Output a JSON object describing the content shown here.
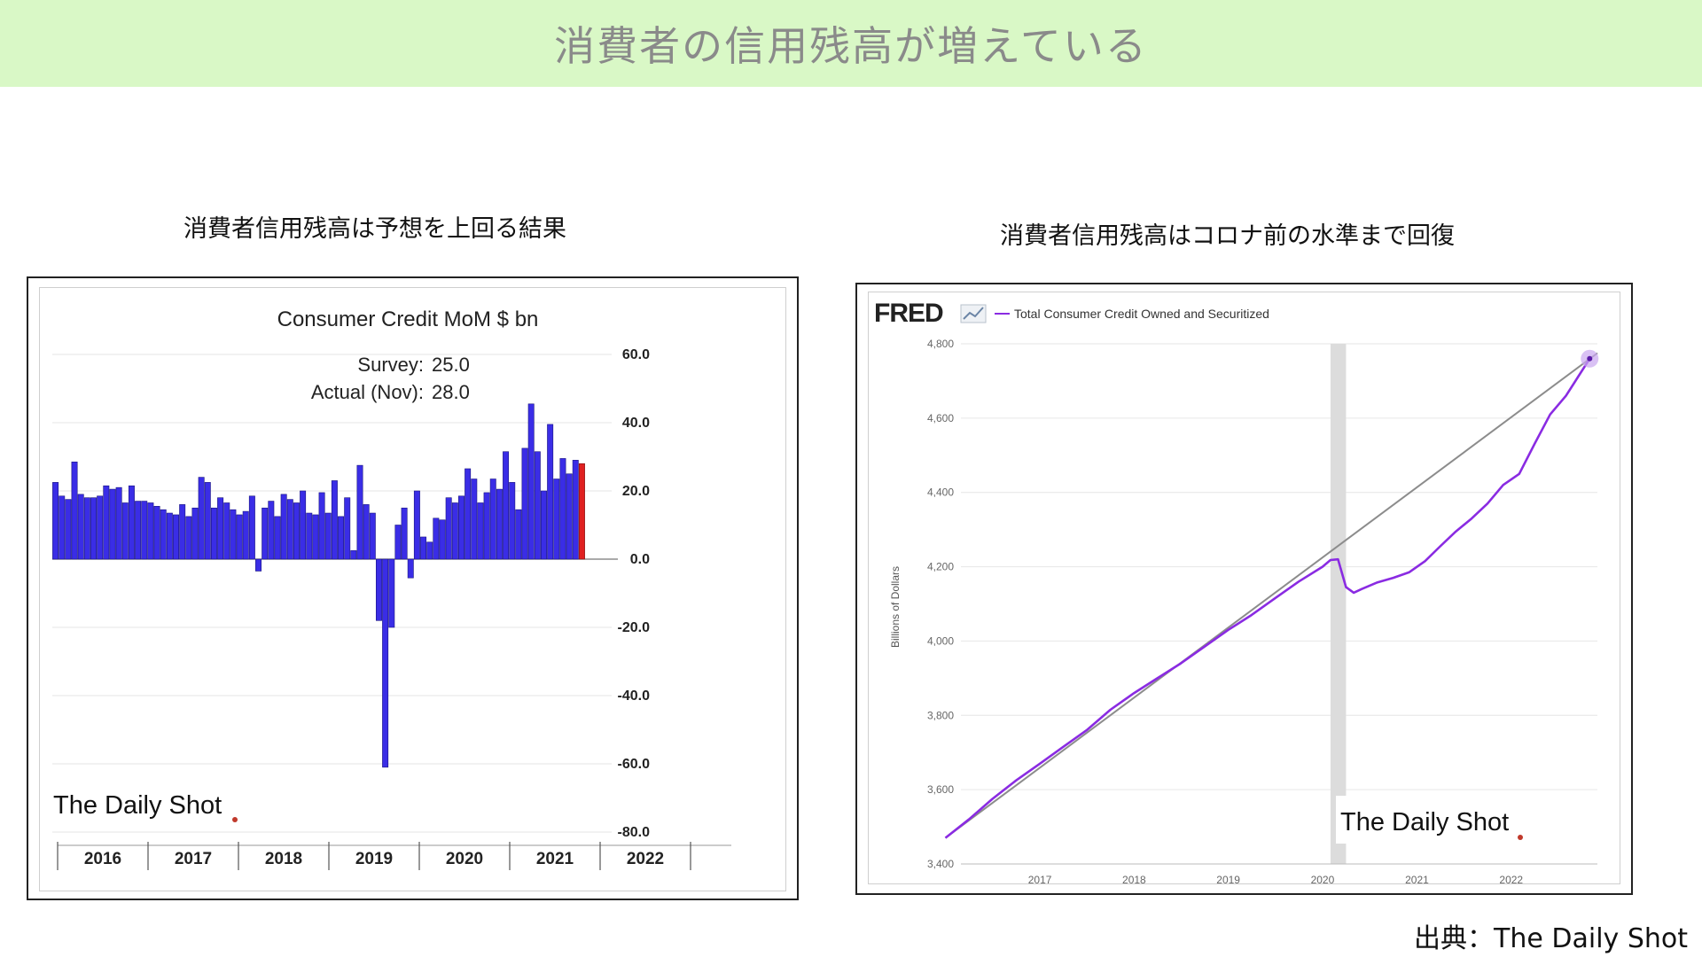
{
  "banner": {
    "title": "消費者の信用残高が増えている"
  },
  "left": {
    "subtitle": "消費者信用残高は予想を上回る結果",
    "watermark": "The Daily Shot",
    "chart_data": {
      "type": "bar",
      "title": "Consumer Credit MoM $ bn",
      "annotation": {
        "survey_label": "Survey:",
        "survey_value": "25.0",
        "actual_label": "Actual (Nov):",
        "actual_value": "28.0"
      },
      "ylim": [
        -80,
        60
      ],
      "yticks": [
        "60.0",
        "40.0",
        "20.0",
        "0.0",
        "-20.0",
        "-40.0",
        "-60.0",
        "-80.0"
      ],
      "x_labels": [
        "2016",
        "2017",
        "2018",
        "2019",
        "2020",
        "2021",
        "2022"
      ],
      "values": [
        22.5,
        18.5,
        17.5,
        28.5,
        19.0,
        18.0,
        18.0,
        18.5,
        21.5,
        20.5,
        21.0,
        16.5,
        21.5,
        17.0,
        17.0,
        16.5,
        15.5,
        14.5,
        13.5,
        13.0,
        16.0,
        12.5,
        15.0,
        24.0,
        22.5,
        15.0,
        18.0,
        16.5,
        14.5,
        13.0,
        14.0,
        18.5,
        -3.5,
        15.0,
        17.0,
        12.5,
        19.0,
        17.5,
        16.5,
        20.0,
        13.5,
        13.0,
        19.5,
        13.5,
        23.0,
        12.5,
        18.0,
        2.5,
        27.5,
        16.0,
        13.5,
        -18.0,
        -61.0,
        -20.0,
        10.0,
        15.0,
        -5.5,
        20.0,
        6.5,
        5.0,
        12.0,
        11.5,
        18.0,
        16.5,
        18.5,
        26.5,
        23.5,
        16.5,
        19.5,
        23.5,
        20.5,
        31.5,
        22.5,
        14.5,
        32.5,
        45.5,
        31.5,
        20.0,
        39.5,
        23.5,
        29.5,
        25.0,
        29.0,
        28.0
      ],
      "bar_color": "#3a2de6",
      "latest_color": "#e02020"
    }
  },
  "right": {
    "subtitle": "消費者信用残高はコロナ前の水準まで回復",
    "logo": "FRED",
    "legend_label": "Total Consumer Credit Owned and Securitized",
    "watermark": "The Daily Shot",
    "chart_data": {
      "type": "line",
      "ylabel": "Billions of Dollars",
      "ylim": [
        3400,
        4800
      ],
      "yticks": [
        "4,800",
        "4,600",
        "4,400",
        "4,200",
        "4,000",
        "3,800",
        "3,600",
        "3,400"
      ],
      "x_labels": [
        "2017",
        "2018",
        "2019",
        "2020",
        "2021",
        "2022"
      ],
      "recession": [
        "2020-02",
        "2020-04"
      ],
      "series": [
        {
          "color": "#8a2be2",
          "x": [
            "2016-01",
            "2016-04",
            "2016-07",
            "2016-10",
            "2017-01",
            "2017-04",
            "2017-07",
            "2017-10",
            "2018-01",
            "2018-04",
            "2018-07",
            "2018-10",
            "2019-01",
            "2019-04",
            "2019-07",
            "2019-10",
            "2020-01",
            "2020-02",
            "2020-03",
            "2020-04",
            "2020-05",
            "2020-06",
            "2020-08",
            "2020-10",
            "2020-12",
            "2021-02",
            "2021-04",
            "2021-06",
            "2021-08",
            "2021-10",
            "2021-12",
            "2022-02",
            "2022-04",
            "2022-06",
            "2022-08",
            "2022-11"
          ],
          "y": [
            3470,
            3520,
            3575,
            3625,
            3670,
            3715,
            3760,
            3815,
            3860,
            3900,
            3940,
            3985,
            4030,
            4070,
            4115,
            4160,
            4200,
            4218,
            4220,
            4145,
            4130,
            4140,
            4158,
            4170,
            4185,
            4215,
            4255,
            4295,
            4330,
            4370,
            4420,
            4450,
            4530,
            4610,
            4660,
            4760
          ]
        },
        {
          "color": "#8c8c8c",
          "x": [
            "2016-01",
            "2022-12"
          ],
          "y": [
            3470,
            4775
          ]
        }
      ]
    }
  },
  "source": "出典：The Daily Shot"
}
